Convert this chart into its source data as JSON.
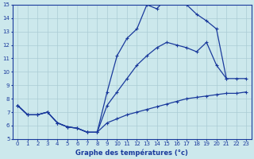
{
  "xlabel": "Graphe des températures (°c)",
  "xlim": [
    -0.5,
    23.5
  ],
  "ylim": [
    5,
    15
  ],
  "yticks": [
    5,
    6,
    7,
    8,
    9,
    10,
    11,
    12,
    13,
    14,
    15
  ],
  "xticks": [
    0,
    1,
    2,
    3,
    4,
    5,
    6,
    7,
    8,
    9,
    10,
    11,
    12,
    13,
    14,
    15,
    16,
    17,
    18,
    19,
    20,
    21,
    22,
    23
  ],
  "background_color": "#cce8ec",
  "line_color": "#1a3a9c",
  "grid_color": "#aaccd4",
  "line1_x": [
    0,
    1,
    2,
    3,
    4,
    5,
    6,
    7,
    8,
    9,
    10,
    11,
    12,
    13,
    14,
    15,
    16,
    17,
    18,
    19,
    20,
    21
  ],
  "line1_y": [
    7.5,
    6.8,
    6.8,
    7.0,
    6.2,
    5.9,
    5.8,
    5.5,
    5.5,
    8.5,
    11.2,
    12.5,
    13.2,
    15.0,
    14.7,
    15.5,
    15.5,
    15.0,
    14.3,
    13.8,
    13.2,
    9.5
  ],
  "line2_x": [
    0,
    1,
    2,
    3,
    4,
    5,
    6,
    7,
    8,
    9,
    10,
    11,
    12,
    13,
    14,
    15,
    16,
    17,
    18,
    19,
    20,
    21,
    22,
    23
  ],
  "line2_y": [
    7.5,
    6.8,
    6.8,
    7.0,
    6.2,
    5.9,
    5.8,
    5.5,
    5.5,
    7.5,
    8.5,
    9.5,
    10.5,
    11.2,
    11.8,
    12.2,
    12.0,
    11.8,
    11.5,
    12.2,
    10.5,
    9.5,
    9.5,
    9.5
  ],
  "line3_x": [
    0,
    1,
    2,
    3,
    4,
    5,
    6,
    7,
    8,
    9,
    10,
    11,
    12,
    13,
    14,
    15,
    16,
    17,
    18,
    19,
    20,
    21,
    22,
    23
  ],
  "line3_y": [
    7.5,
    6.8,
    6.8,
    7.0,
    6.2,
    5.9,
    5.8,
    5.5,
    5.5,
    6.2,
    6.5,
    6.8,
    7.0,
    7.2,
    7.4,
    7.6,
    7.8,
    8.0,
    8.1,
    8.2,
    8.3,
    8.4,
    8.4,
    8.5
  ]
}
